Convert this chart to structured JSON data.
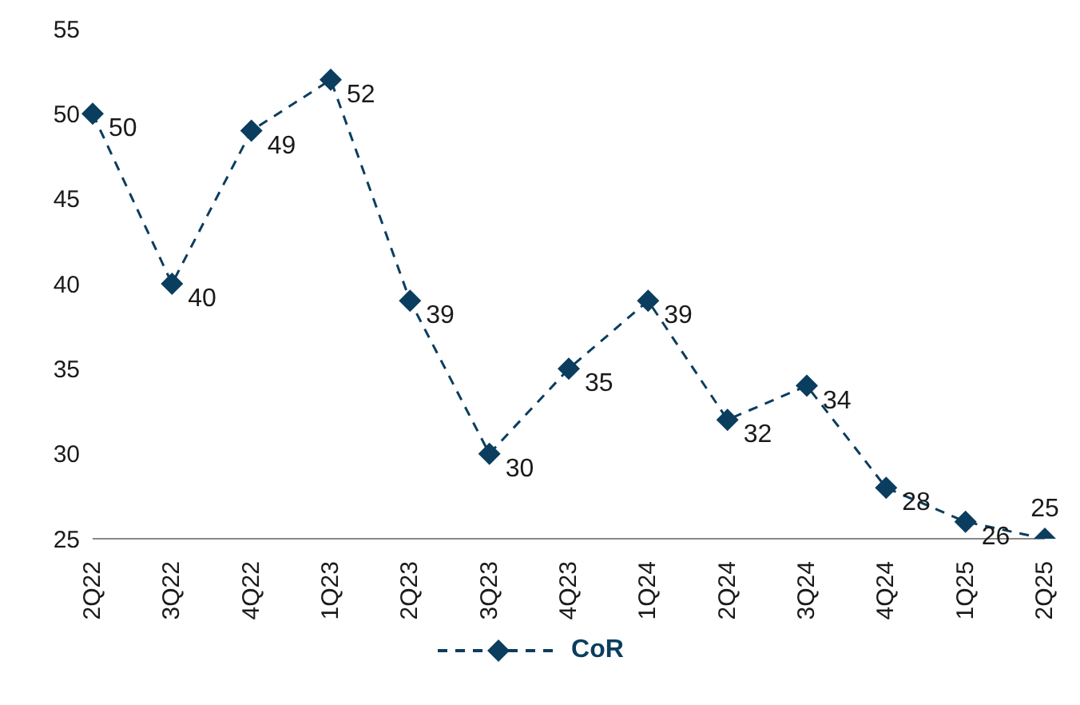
{
  "chart_data": {
    "type": "line",
    "categories": [
      "2Q22",
      "3Q22",
      "4Q22",
      "1Q23",
      "2Q23",
      "3Q23",
      "4Q23",
      "1Q24",
      "2Q24",
      "3Q24",
      "4Q24",
      "1Q25",
      "2Q25"
    ],
    "series": [
      {
        "name": "CoR",
        "color": "#0b3d5e",
        "values": [
          50,
          40,
          49,
          52,
          39,
          30,
          35,
          39,
          32,
          34,
          28,
          26,
          25
        ]
      }
    ],
    "ylim": [
      25,
      55
    ],
    "yticks": [
      25,
      30,
      35,
      40,
      45,
      50,
      55
    ],
    "legend": "bottom",
    "marker": "diamond",
    "line_style": "dashed",
    "data_labels": true
  }
}
